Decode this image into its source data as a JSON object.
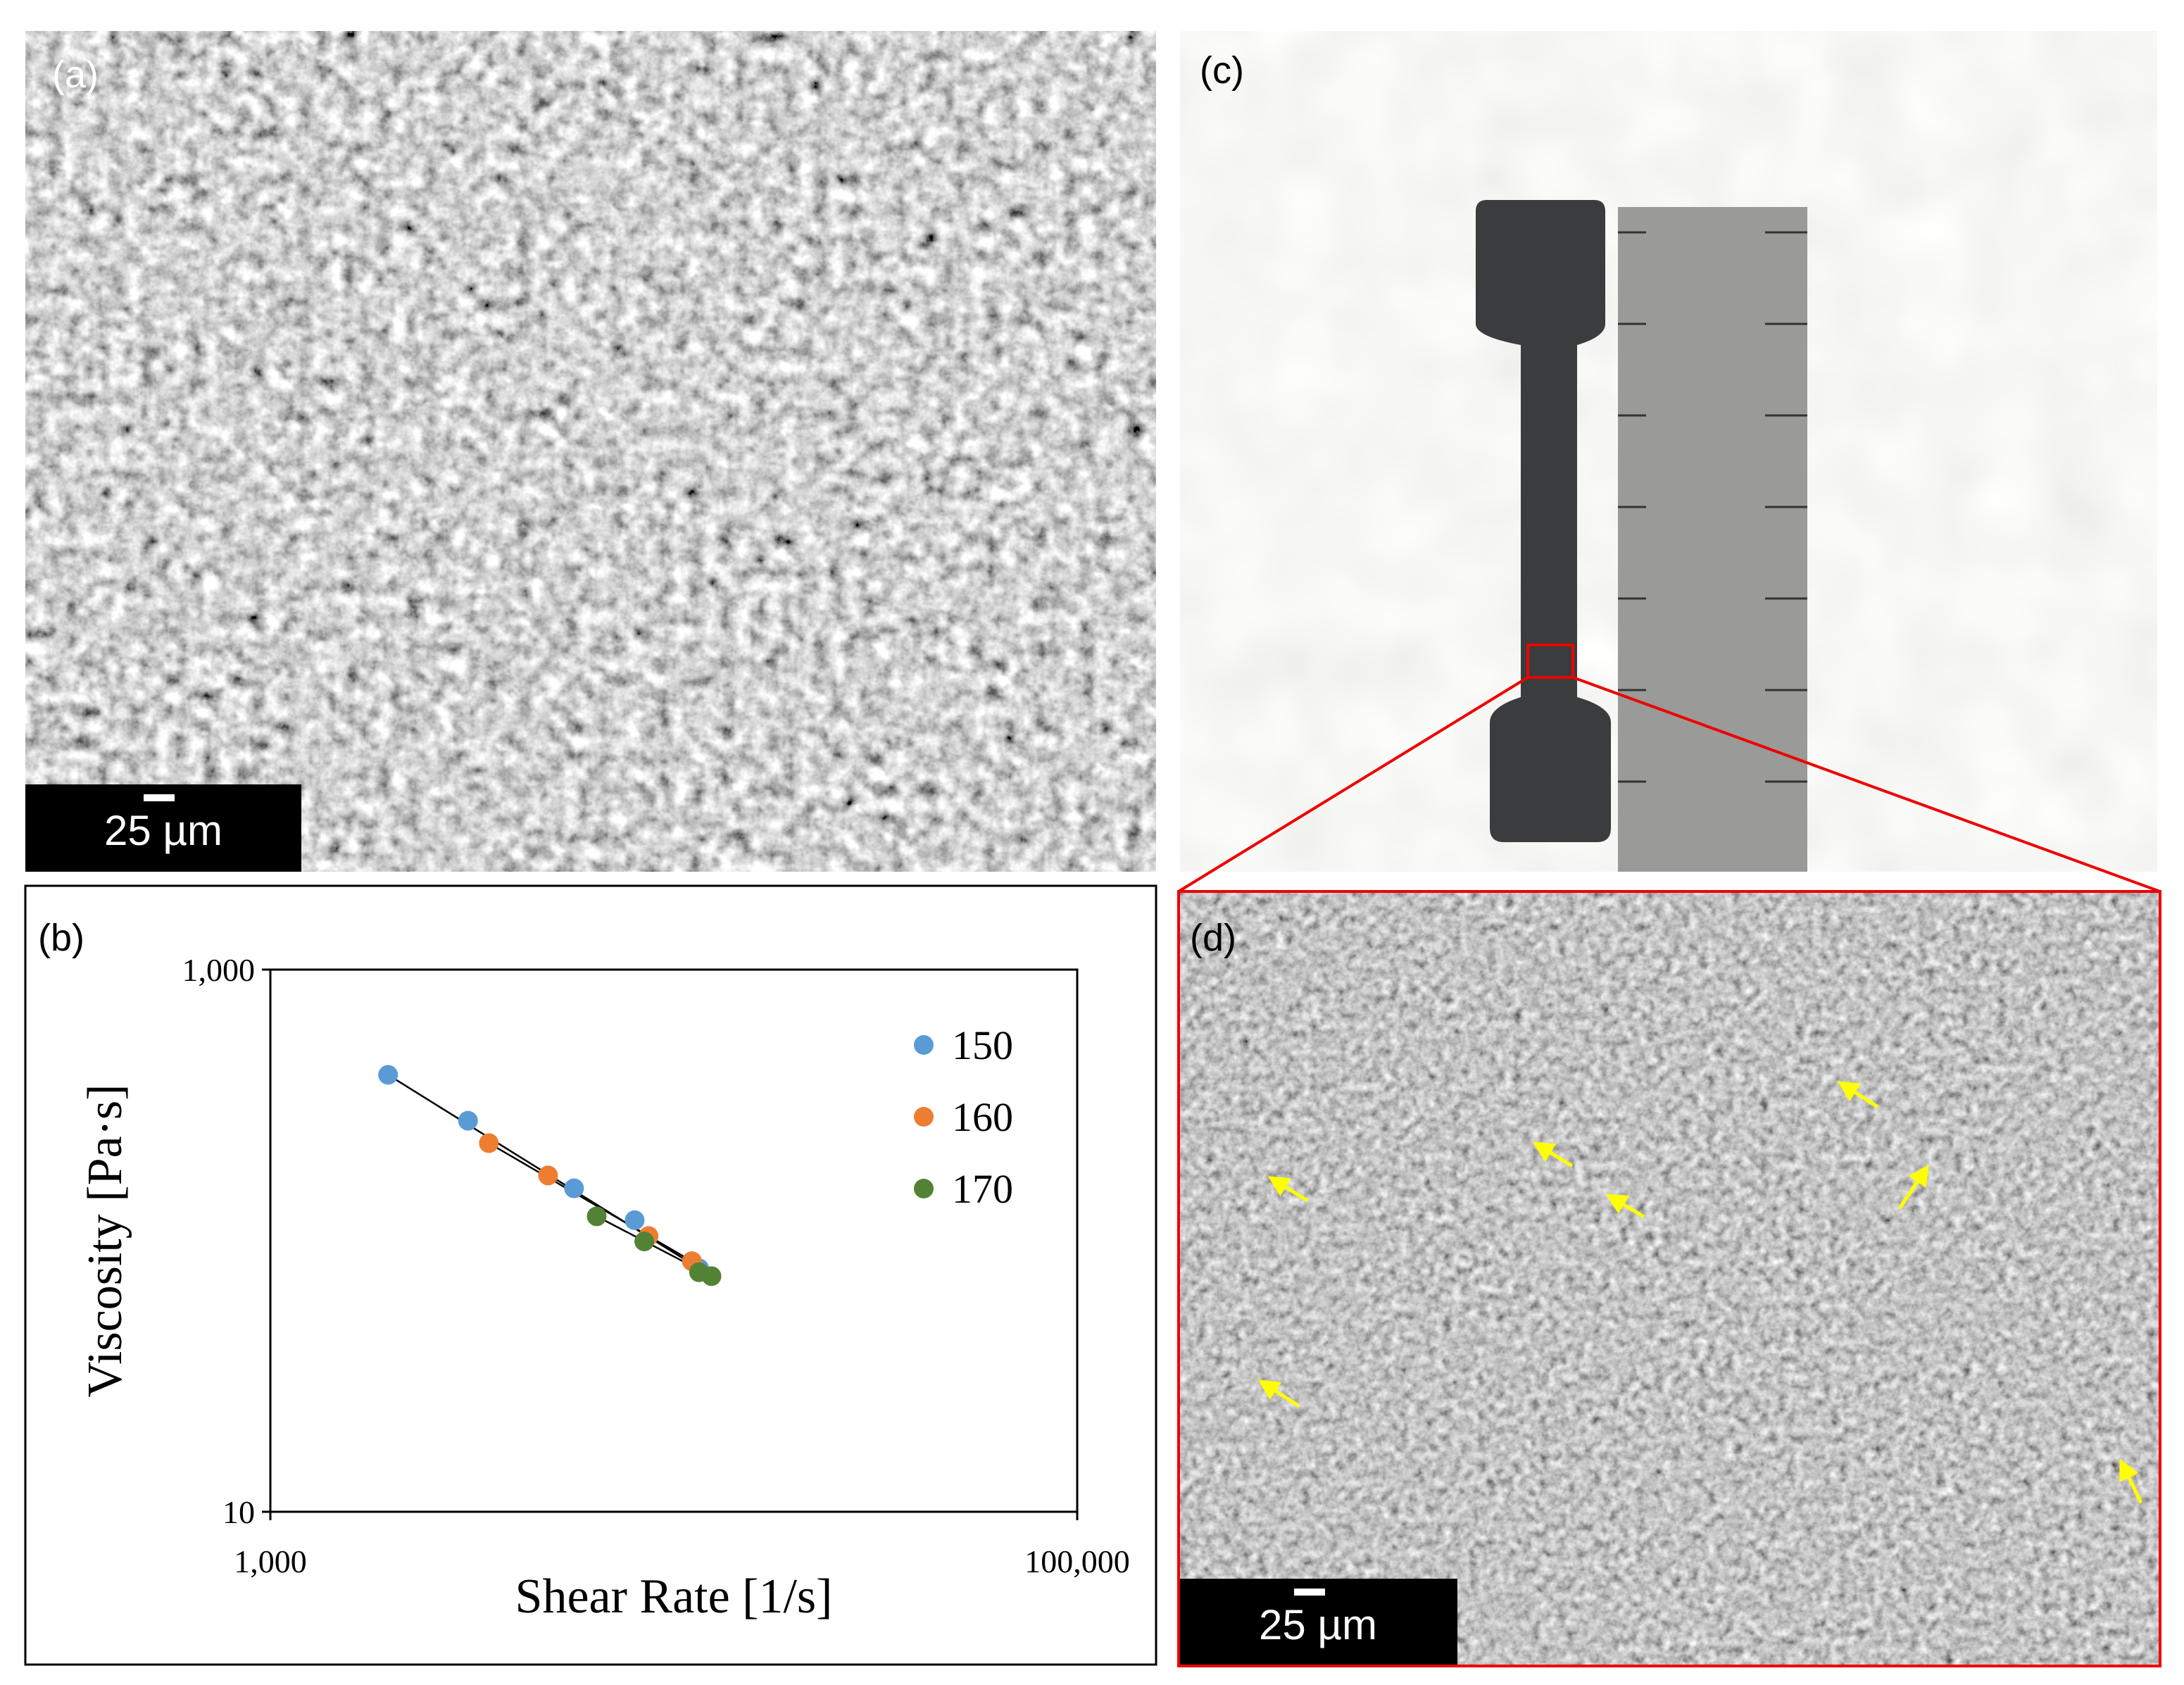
{
  "panels": {
    "a": {
      "label": "(a)",
      "scale_bar": "25 µm"
    },
    "b": {
      "label": "(b)"
    },
    "c": {
      "label": "(c)"
    },
    "d": {
      "label": "(d)",
      "scale_bar": "25 µm"
    }
  },
  "chart_data": {
    "type": "scatter",
    "x_label": "Shear Rate [1/s]",
    "y_label": "Viscosity  [Pa·s]",
    "log_x": true,
    "log_y": true,
    "legend": "right",
    "xlim": [
      1000,
      100000
    ],
    "xticks": [
      {
        "value": 1000,
        "label": "1,000"
      },
      {
        "value": 100000,
        "label": "100,000"
      }
    ],
    "ylim": [
      10,
      1000
    ],
    "yticks": [
      10,
      {
        "value": 1000,
        "label": "1,000"
      }
    ],
    "series": [
      {
        "name": "150",
        "color": "#5b9bd5",
        "x": [
          1958,
          3090,
          5660,
          8000,
          11560
        ],
        "values": [
          409,
          277,
          156,
          119,
          79
        ]
      },
      {
        "name": "160",
        "color": "#ed7d31",
        "x": [
          3480,
          4880,
          8660,
          11090
        ],
        "values": [
          229,
          174,
          104,
          84
        ]
      },
      {
        "name": "170",
        "color": "#548235",
        "x": [
          6440,
          8450,
          11550,
          12400
        ],
        "values": [
          123,
          99.4,
          76.5,
          74
        ]
      }
    ]
  }
}
